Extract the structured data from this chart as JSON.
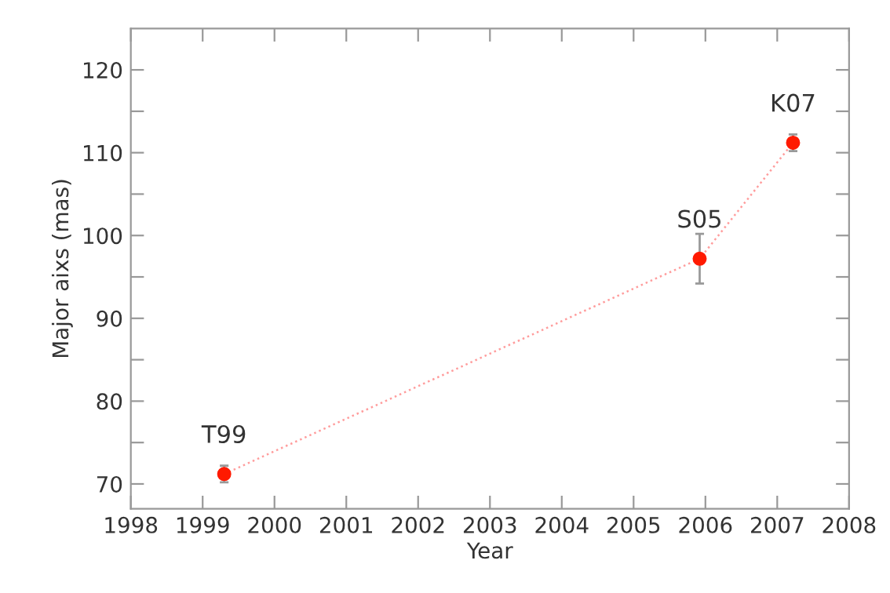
{
  "chart_data": {
    "type": "scatter",
    "xlabel": "Year",
    "ylabel": "Major aixs (mas)",
    "x": [
      1999.3,
      2005.92,
      2007.22
    ],
    "series": [
      {
        "type": "line",
        "color": "#ff9c9c",
        "line_style": "dotted",
        "marker": "none",
        "values": [
          71.2,
          97.2,
          111.2
        ]
      },
      {
        "color": "#ff1a00",
        "marker": "circle",
        "values": [
          71.2,
          97.2,
          111.2
        ],
        "errors": [
          1,
          3,
          1
        ]
      }
    ],
    "annotations": [
      {
        "text": "T99",
        "x": 1999.3,
        "y": 71.2
      },
      {
        "text": "S05",
        "x": 2005.92,
        "y": 97.2
      },
      {
        "text": "K07",
        "x": 2007.22,
        "y": 111.2
      }
    ],
    "xlim": [
      1998,
      2008
    ],
    "xticks": [
      1998,
      1999,
      2000,
      2001,
      2002,
      2003,
      2004,
      2005,
      2006,
      2007,
      2008
    ],
    "ylim": [
      67,
      125
    ],
    "yticks": [
      70,
      {
        "value": 75,
        "label": null
      },
      80,
      {
        "value": 85,
        "label": null
      },
      90,
      {
        "value": 95,
        "label": null
      },
      100,
      {
        "value": 105,
        "label": null
      },
      110,
      {
        "value": 115,
        "label": null
      },
      120
    ],
    "grid": false
  }
}
